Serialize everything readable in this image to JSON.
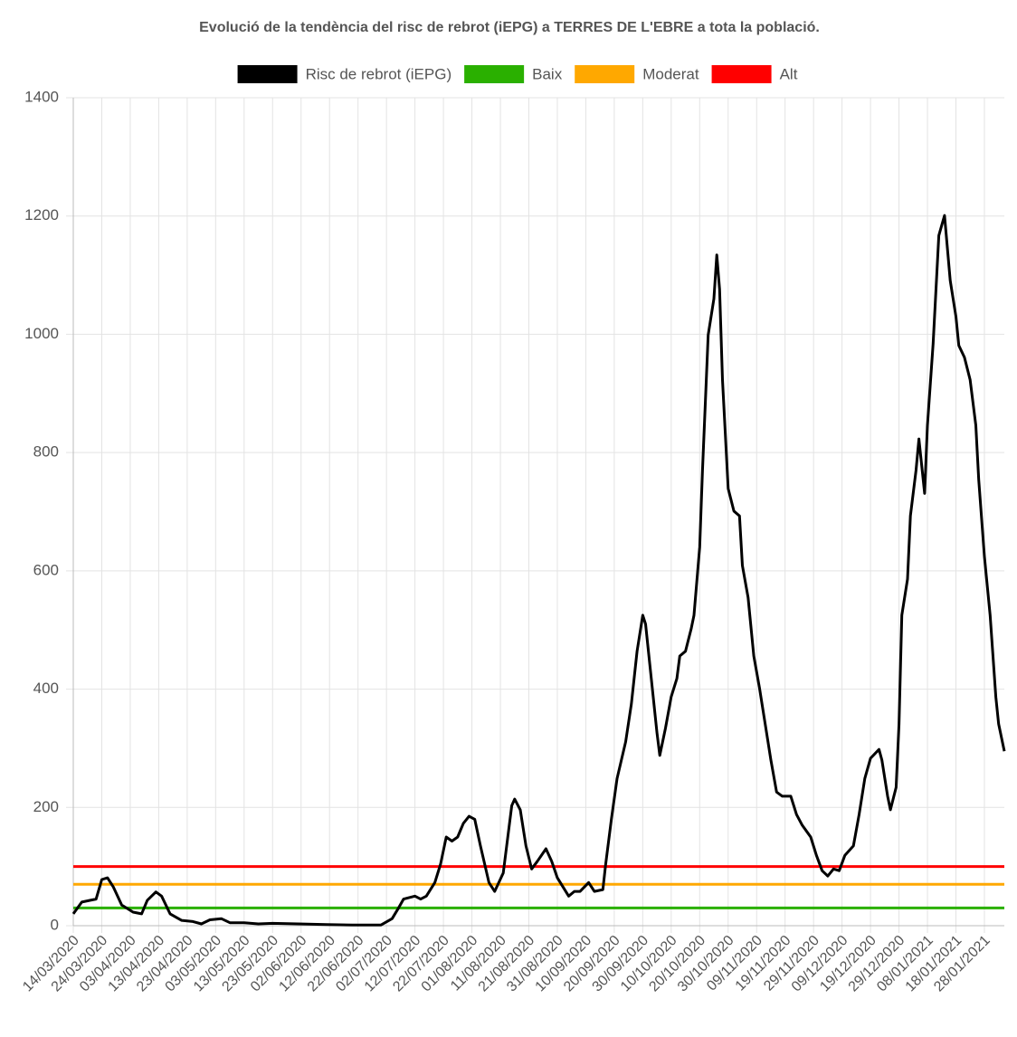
{
  "chart_data": {
    "type": "line",
    "title": "Evolució de la tendència del risc de rebrot (iEPG) a TERRES DE L'EBRE a tota la població.",
    "x": [
      "14/03/2020",
      "17/03/2020",
      "20/03/2020",
      "22/03/2020",
      "24/03/2020",
      "26/03/2020",
      "28/03/2020",
      "31/03/2020",
      "04/04/2020",
      "07/04/2020",
      "09/04/2020",
      "12/04/2020",
      "14/04/2020",
      "17/04/2020",
      "21/04/2020",
      "25/04/2020",
      "28/04/2020",
      "01/05/2020",
      "05/05/2020",
      "08/05/2020",
      "13/05/2020",
      "18/05/2020",
      "23/05/2020",
      "01/06/2020",
      "11/06/2020",
      "20/06/2020",
      "30/06/2020",
      "04/07/2020",
      "06/07/2020",
      "08/07/2020",
      "12/07/2020",
      "14/07/2020",
      "16/07/2020",
      "19/07/2020",
      "21/07/2020",
      "23/07/2020",
      "25/07/2020",
      "27/07/2020",
      "29/07/2020",
      "31/07/2020",
      "02/08/2020",
      "04/08/2020",
      "07/08/2020",
      "09/08/2020",
      "12/08/2020",
      "15/08/2020",
      "16/08/2020",
      "18/08/2020",
      "20/08/2020",
      "22/08/2020",
      "24/08/2020",
      "27/08/2020",
      "29/08/2020",
      "31/08/2020",
      "04/09/2020",
      "06/09/2020",
      "08/09/2020",
      "11/09/2020",
      "13/09/2020",
      "16/09/2020",
      "17/09/2020",
      "19/09/2020",
      "21/09/2020",
      "24/09/2020",
      "26/09/2020",
      "28/09/2020",
      "30/09/2020",
      "01/10/2020",
      "03/10/2020",
      "05/10/2020",
      "06/10/2020",
      "08/10/2020",
      "10/10/2020",
      "12/10/2020",
      "13/10/2020",
      "15/10/2020",
      "17/10/2020",
      "18/10/2020",
      "20/10/2020",
      "21/10/2020",
      "23/10/2020",
      "25/10/2020",
      "26/10/2020",
      "27/10/2020",
      "28/10/2020",
      "30/10/2020",
      "01/11/2020",
      "03/11/2020",
      "04/11/2020",
      "06/11/2020",
      "08/11/2020",
      "10/11/2020",
      "12/11/2020",
      "14/11/2020",
      "16/11/2020",
      "18/11/2020",
      "21/11/2020",
      "23/11/2020",
      "25/11/2020",
      "28/11/2020",
      "30/11/2020",
      "02/12/2020",
      "04/12/2020",
      "06/12/2020",
      "08/12/2020",
      "10/12/2020",
      "13/12/2020",
      "15/12/2020",
      "17/12/2020",
      "19/12/2020",
      "22/12/2020",
      "23/12/2020",
      "25/12/2020",
      "26/12/2020",
      "28/12/2020",
      "29/12/2020",
      "30/12/2020",
      "01/01/2021",
      "02/01/2021",
      "04/01/2021",
      "05/01/2021",
      "07/01/2021",
      "08/01/2021",
      "10/01/2021",
      "12/01/2021",
      "14/01/2021",
      "16/01/2021",
      "18/01/2021",
      "19/01/2021",
      "21/01/2021",
      "23/01/2021",
      "25/01/2021",
      "26/01/2021",
      "28/01/2021",
      "30/01/2021",
      "01/02/2021",
      "02/02/2021",
      "04/02/2021"
    ],
    "series": [
      {
        "name": "Risc de rebrot (iEPG)",
        "color": "#000000",
        "values": [
          20,
          40,
          43,
          45,
          78,
          81,
          66,
          35,
          23,
          20,
          43,
          57,
          50,
          20,
          9,
          7,
          3,
          10,
          12,
          5,
          5,
          3,
          4,
          3,
          2,
          1,
          1,
          12,
          28,
          45,
          50,
          45,
          50,
          73,
          104,
          150,
          143,
          150,
          173,
          185,
          180,
          135,
          73,
          58,
          89,
          203,
          214,
          196,
          135,
          96,
          109,
          130,
          109,
          81,
          50,
          58,
          58,
          73,
          58,
          61,
          104,
          180,
          249,
          311,
          375,
          464,
          525,
          510,
          418,
          326,
          288,
          334,
          387,
          418,
          456,
          464,
          502,
          525,
          640,
          770,
          999,
          1060,
          1134,
          1076,
          923,
          739,
          701,
          693,
          609,
          555,
          456,
          402,
          341,
          280,
          226,
          219,
          219,
          188,
          170,
          150,
          119,
          93,
          84,
          96,
          93,
          119,
          135,
          188,
          249,
          283,
          298,
          280,
          219,
          196,
          234,
          341,
          525,
          586,
          693,
          770,
          823,
          731,
          846,
          984,
          1167,
          1201,
          1091,
          1030,
          981,
          961,
          923,
          846,
          754,
          624,
          525,
          387,
          341,
          295
        ]
      }
    ],
    "thresholds": [
      {
        "name": "Baix",
        "color": "#2ab000",
        "value": 30
      },
      {
        "name": "Moderat",
        "color": "#ffa800",
        "value": 70
      },
      {
        "name": "Alt",
        "color": "#ff0000",
        "value": 100
      }
    ],
    "xlim": [
      "14/03/2020",
      "04/02/2021"
    ],
    "xticks": [
      "14/03/2020",
      "24/03/2020",
      "03/04/2020",
      "13/04/2020",
      "23/04/2020",
      "03/05/2020",
      "13/05/2020",
      "23/05/2020",
      "02/06/2020",
      "12/06/2020",
      "22/06/2020",
      "02/07/2020",
      "12/07/2020",
      "22/07/2020",
      "01/08/2020",
      "11/08/2020",
      "21/08/2020",
      "31/08/2020",
      "10/09/2020",
      "20/09/2020",
      "30/09/2020",
      "10/10/2020",
      "20/10/2020",
      "30/10/2020",
      "09/11/2020",
      "19/11/2020",
      "29/11/2020",
      "09/12/2020",
      "19/12/2020",
      "29/12/2020",
      "08/01/2021",
      "18/01/2021",
      "28/01/2021"
    ],
    "ylim": [
      0,
      1400
    ],
    "yticks": [
      0,
      200,
      400,
      600,
      800,
      1000,
      1200,
      1400
    ],
    "grid": true
  }
}
